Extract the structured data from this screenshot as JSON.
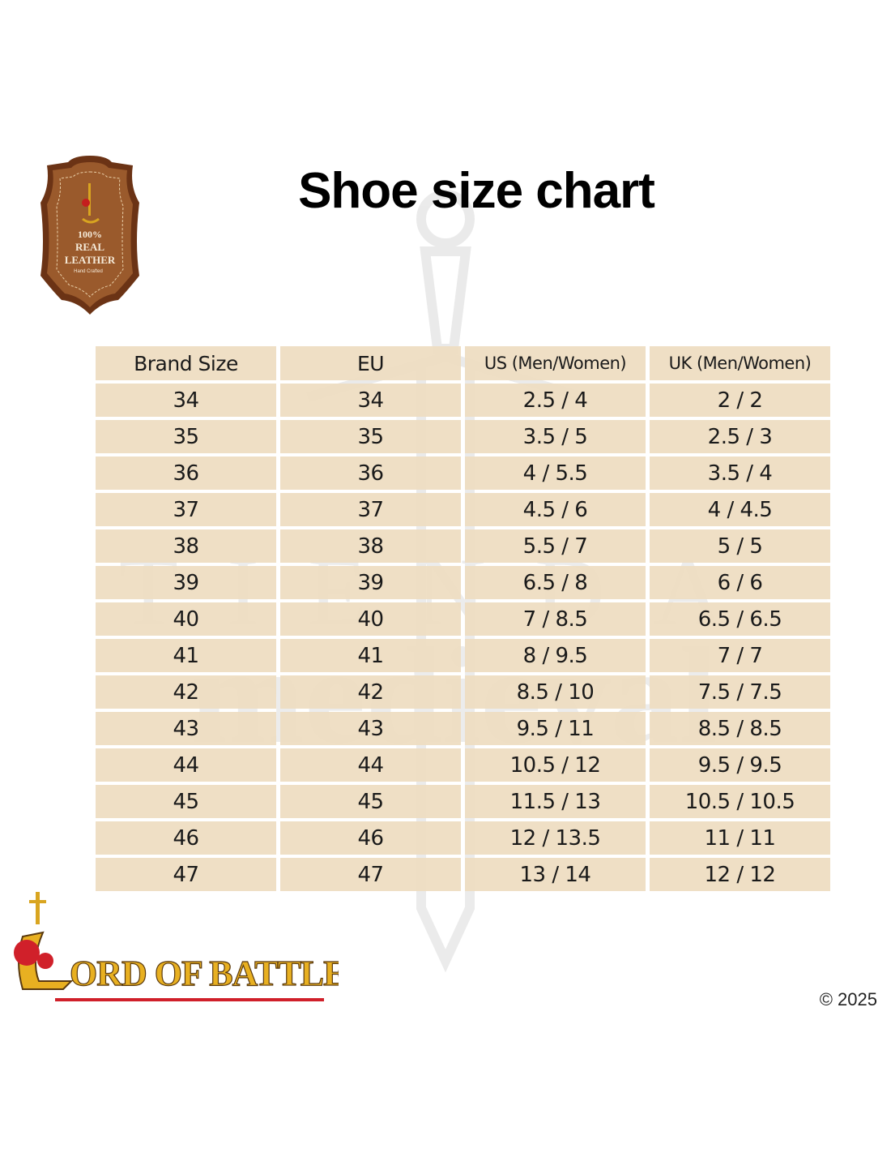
{
  "title": "Shoe size chart",
  "badge": {
    "line1": "100%",
    "line2": "REAL",
    "line3": "LEATHER",
    "line4": "Hand Crafted"
  },
  "watermark": {
    "line1": "TIENDA",
    "line2": "medieval"
  },
  "table": {
    "headers": [
      "Brand Size",
      "EU",
      "US (Men/Women)",
      "UK (Men/Women)"
    ],
    "rows": [
      [
        "34",
        "34",
        "2.5 / 4",
        "2 / 2"
      ],
      [
        "35",
        "35",
        "3.5 / 5",
        "2.5 / 3"
      ],
      [
        "36",
        "36",
        "4 / 5.5",
        "3.5 / 4"
      ],
      [
        "37",
        "37",
        "4.5 / 6",
        "4 / 4.5"
      ],
      [
        "38",
        "38",
        "5.5 / 7",
        "5 / 5"
      ],
      [
        "39",
        "39",
        "6.5 / 8",
        "6 / 6"
      ],
      [
        "40",
        "40",
        "7 / 8.5",
        "6.5 / 6.5"
      ],
      [
        "41",
        "41",
        "8 / 9.5",
        "7 / 7"
      ],
      [
        "42",
        "42",
        "8.5 / 10",
        "7.5 / 7.5"
      ],
      [
        "43",
        "43",
        "9.5 / 11",
        "8.5 / 8.5"
      ],
      [
        "44",
        "44",
        "10.5 / 12",
        "9.5 / 9.5"
      ],
      [
        "45",
        "45",
        "11.5 / 13",
        "10.5 / 10.5"
      ],
      [
        "46",
        "46",
        "12 / 13.5",
        "11 / 11"
      ],
      [
        "47",
        "47",
        "13 / 14",
        "12 / 12"
      ]
    ]
  },
  "logo": {
    "text": "LORD OF BATTLES"
  },
  "copyright": "© 2025",
  "colors": {
    "cell": "#eedcc0",
    "badge": "#8b4a22",
    "logo_gold": "#e8b021",
    "logo_red": "#d0202a"
  }
}
